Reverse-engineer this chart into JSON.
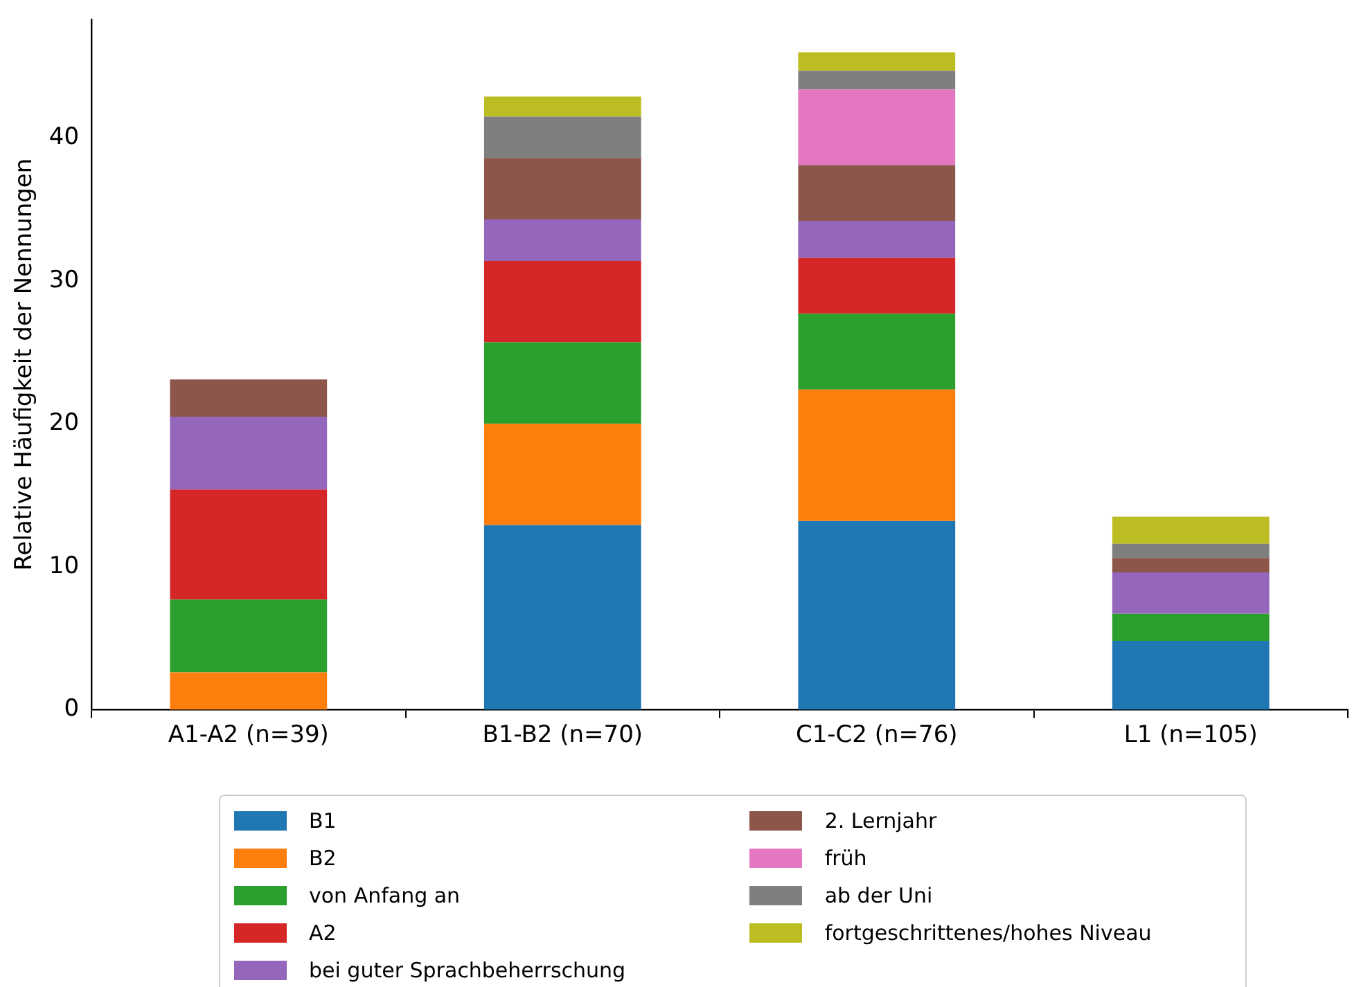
{
  "chart_data": {
    "type": "bar",
    "stacked": true,
    "ylabel": "Relative Häufigkeit der Nennungen",
    "categories": [
      "A1-A2 (n=39)",
      "B1-B2 (n=70)",
      "C1-C2 (n=76)",
      "L1 (n=105)"
    ],
    "series": [
      {
        "name": "B1",
        "color": "#1f77b4",
        "values": [
          0,
          12.9,
          13.2,
          4.8
        ]
      },
      {
        "name": "B2",
        "color": "#ff7f0e",
        "values": [
          2.6,
          7.1,
          9.2,
          0
        ]
      },
      {
        "name": "von Anfang an",
        "color": "#2ca02c",
        "values": [
          5.1,
          5.7,
          5.3,
          1.9
        ]
      },
      {
        "name": "A2",
        "color": "#d62728",
        "values": [
          7.7,
          5.7,
          3.9,
          0
        ]
      },
      {
        "name": "bei guter Sprachbeherrschung",
        "color": "#9467bd",
        "values": [
          5.1,
          2.9,
          2.6,
          2.9
        ]
      },
      {
        "name": "2. Lernjahr",
        "color": "#8c564b",
        "values": [
          2.6,
          4.3,
          3.9,
          1.0
        ]
      },
      {
        "name": "früh",
        "color": "#e377c2",
        "values": [
          0,
          0,
          5.3,
          0
        ]
      },
      {
        "name": "ab der Uni",
        "color": "#7f7f7f",
        "values": [
          0,
          2.9,
          1.3,
          1.0
        ]
      },
      {
        "name": "fortgeschrittenes/hohes Niveau",
        "color": "#bcbd22",
        "values": [
          0,
          1.4,
          1.3,
          1.9
        ]
      }
    ],
    "ylim": [
      0,
      48.3
    ],
    "yticks": [
      0,
      10,
      20,
      30,
      40
    ],
    "grid": false,
    "legend": "bottom"
  }
}
